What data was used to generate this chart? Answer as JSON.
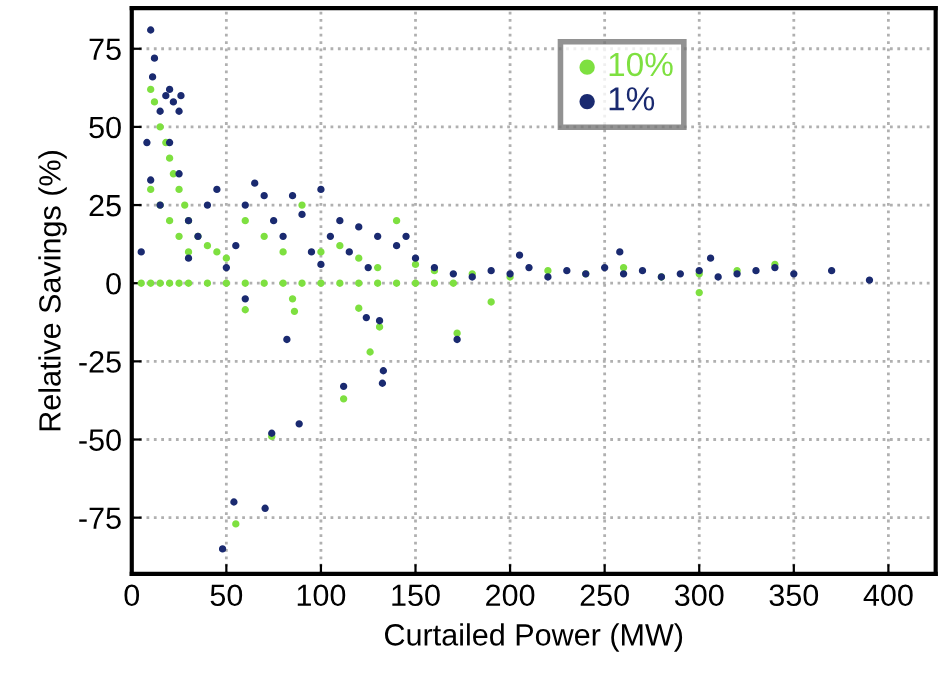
{
  "chart_data": {
    "type": "scatter",
    "xlabel": "Curtailed Power (MW)",
    "ylabel": "Relative Savings (%)",
    "xlim": [
      0,
      425
    ],
    "ylim": [
      -93,
      88
    ],
    "xticks": [
      0,
      50,
      100,
      150,
      200,
      250,
      300,
      350,
      400
    ],
    "yticks": [
      -75,
      -50,
      -25,
      0,
      25,
      50,
      75
    ],
    "grid": true,
    "legend": "top",
    "marker": "circle",
    "series": [
      {
        "name": "10%",
        "color": "#7ee040",
        "x": [
          5,
          10,
          15,
          20,
          25,
          30,
          40,
          50,
          60,
          70,
          80,
          90,
          100,
          110,
          120,
          130,
          140,
          150,
          160,
          170,
          10,
          12,
          15,
          18,
          20,
          22,
          25,
          28,
          30,
          35,
          40,
          45,
          50,
          10,
          15,
          20,
          25,
          30,
          60,
          70,
          80,
          90,
          100,
          110,
          120,
          130,
          140,
          150,
          160,
          180,
          200,
          220,
          240,
          260,
          280,
          300,
          320,
          340,
          55,
          74,
          112,
          120,
          126,
          131,
          172,
          60,
          86,
          85,
          300,
          190
        ],
        "values": [
          0,
          0,
          0,
          0,
          0,
          0,
          0,
          0,
          0,
          0,
          0,
          0,
          0,
          0,
          0,
          0,
          0,
          0,
          0,
          0,
          62,
          58,
          50,
          45,
          40,
          35,
          30,
          25,
          20,
          15,
          12,
          10,
          8,
          30,
          25,
          20,
          15,
          10,
          20,
          15,
          10,
          25,
          10,
          12,
          8,
          5,
          20,
          6,
          4,
          3,
          2,
          4,
          3,
          5,
          2,
          3,
          4,
          6,
          -77,
          -49,
          -37,
          -8,
          -22,
          -14,
          -16,
          -8.5,
          -9,
          -5,
          -3,
          -6
        ]
      },
      {
        "name": "1%",
        "color": "#1a2a70",
        "x": [
          10,
          12,
          11,
          8,
          10,
          15,
          18,
          20,
          22,
          25,
          26,
          15,
          20,
          25,
          30,
          35,
          40,
          45,
          50,
          60,
          65,
          70,
          75,
          80,
          85,
          90,
          95,
          100,
          105,
          110,
          115,
          120,
          125,
          130,
          140,
          150,
          160,
          170,
          180,
          190,
          200,
          210,
          220,
          230,
          240,
          250,
          260,
          270,
          280,
          290,
          300,
          310,
          320,
          330,
          340,
          350,
          370,
          390,
          48,
          54,
          70.5,
          74,
          88.5,
          82,
          112,
          124,
          131,
          133,
          132.5,
          172,
          60,
          5,
          30,
          55,
          100,
          145,
          205,
          258,
          306
        ],
        "values": [
          81,
          72,
          66,
          45,
          33,
          55,
          60,
          62,
          58,
          55,
          60,
          25,
          45,
          35,
          20,
          15,
          25,
          30,
          5,
          25,
          32,
          28,
          20,
          15,
          28,
          22,
          10,
          30,
          15,
          20,
          10,
          18,
          5,
          15,
          12,
          8,
          5,
          3,
          2,
          4,
          3,
          5,
          2,
          4,
          3,
          5,
          3,
          4,
          2,
          3,
          4,
          2,
          3,
          4,
          5,
          3,
          4,
          1,
          -85,
          -70,
          -72,
          -48,
          -45,
          -18,
          -33,
          -11,
          -12,
          -28,
          -32,
          -18,
          -5,
          10,
          8,
          12,
          6,
          15,
          9,
          10,
          8
        ]
      }
    ]
  }
}
